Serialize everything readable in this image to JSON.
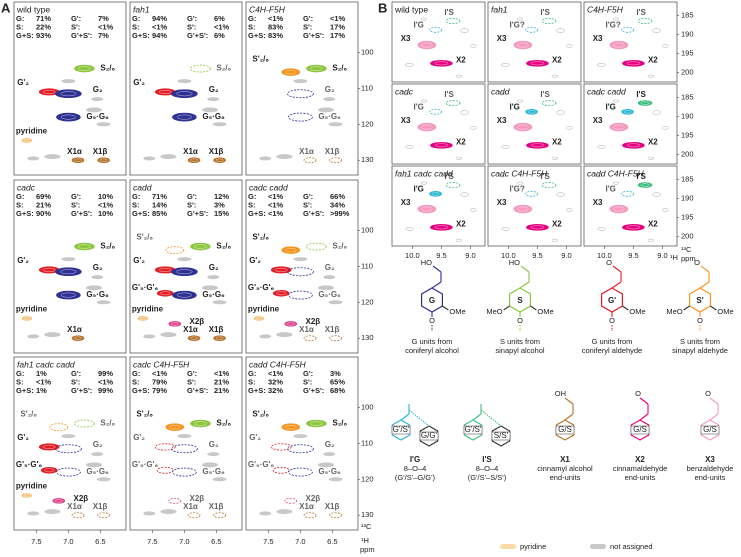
{
  "panel_a": {
    "letter": "A",
    "x_ticks": [
      "7.5",
      "7.0",
      "6.5"
    ],
    "y_ticks": [
      "100",
      "110",
      "120",
      "130"
    ],
    "x_unit": "¹H",
    "y_unit": "¹³C",
    "unit": "ppm",
    "stat_colors": [
      [
        "#2e3192",
        "#e31e24"
      ],
      [
        "#5f9e2f",
        "#f7941d"
      ],
      [
        "#1b2a5e",
        "#a0561d"
      ]
    ],
    "panels": [
      {
        "title": "wild type",
        "italic": false,
        "stats": [
          [
            "G:",
            "71%",
            "G':",
            "7%"
          ],
          [
            "S:",
            "22%",
            "S':",
            "<1%"
          ],
          [
            "G+S:",
            "93%",
            "G'+S':",
            "7%"
          ]
        ],
        "peaks": [
          {
            "label": "S₂/₆",
            "color": "#8dc63f",
            "dashed": false
          },
          {
            "label": "G'₂",
            "color": "#e31e24",
            "dashed": false
          },
          {
            "label": "G₂",
            "color": "#2e3192",
            "dashed": false
          },
          {
            "label": "G₅·G₆",
            "color": "#2e3192",
            "dashed": false
          },
          {
            "label": "pyridine",
            "color": "#f5c27a",
            "dashed": false
          },
          {
            "label": "X1α",
            "color": "#b5732b",
            "dashed": false
          },
          {
            "label": "X1β",
            "color": "#b5732b",
            "dashed": false
          }
        ]
      },
      {
        "title": "fah1",
        "italic": true,
        "stats": [
          [
            "G:",
            "94%",
            "G':",
            "6%"
          ],
          [
            "S:",
            "<1%",
            "S':",
            "<1%"
          ],
          [
            "G+S:",
            "94%",
            "G'+S':",
            "6%"
          ]
        ],
        "peaks": [
          {
            "label": "S₂/₆",
            "color": "#8dc63f",
            "dashed": true
          },
          {
            "label": "G'₂",
            "color": "#e31e24",
            "dashed": false
          },
          {
            "label": "G₂",
            "color": "#2e3192",
            "dashed": false
          },
          {
            "label": "G₅·G₆",
            "color": "#2e3192",
            "dashed": false
          },
          {
            "label": "X1α",
            "color": "#b5732b",
            "dashed": false
          },
          {
            "label": "X1β",
            "color": "#b5732b",
            "dashed": false
          }
        ]
      },
      {
        "title": "C4H-F5H",
        "italic": true,
        "stats": [
          [
            "G:",
            "<1%",
            "G':",
            "<1%"
          ],
          [
            "S:",
            "83%",
            "S':",
            "17%"
          ],
          [
            "G+S:",
            "83%",
            "G'+S':",
            "17%"
          ]
        ],
        "peaks": [
          {
            "label": "S'₂/₆",
            "color": "#f7941d",
            "dashed": false
          },
          {
            "label": "S₂/₆",
            "color": "#8dc63f",
            "dashed": false
          },
          {
            "label": "G₂",
            "color": "#2e3192",
            "dashed": true
          },
          {
            "label": "G₅·G₆",
            "color": "#2e3192",
            "dashed": true
          },
          {
            "label": "X1α",
            "color": "#b5732b",
            "dashed": true
          },
          {
            "label": "X1β",
            "color": "#b5732b",
            "dashed": true
          }
        ]
      },
      {
        "title": "cadc",
        "italic": true,
        "stats": [
          [
            "G:",
            "69%",
            "G':",
            "10%"
          ],
          [
            "S:",
            "21%",
            "S':",
            "<1%"
          ],
          [
            "G+S:",
            "90%",
            "G'+S':",
            "10%"
          ]
        ],
        "peaks": [
          {
            "label": "S₂/₆",
            "color": "#8dc63f",
            "dashed": false
          },
          {
            "label": "G'₂",
            "color": "#e31e24",
            "dashed": false
          },
          {
            "label": "G₂",
            "color": "#2e3192",
            "dashed": false
          },
          {
            "label": "G₅·G₆",
            "color": "#2e3192",
            "dashed": false
          },
          {
            "label": "pyridine",
            "color": "#f5c27a",
            "dashed": false
          },
          {
            "label": "X1α",
            "color": "#b5732b",
            "dashed": false
          }
        ]
      },
      {
        "title": "cadd",
        "italic": true,
        "stats": [
          [
            "G:",
            "71%",
            "G':",
            "12%"
          ],
          [
            "S:",
            "14%",
            "S':",
            "3%"
          ],
          [
            "G+S:",
            "85%",
            "G'+S':",
            "15%"
          ]
        ],
        "peaks": [
          {
            "label": "S'₂/₆",
            "color": "#f7941d",
            "dashed": true
          },
          {
            "label": "S₂/₆",
            "color": "#8dc63f",
            "dashed": false
          },
          {
            "label": "G'₂",
            "color": "#e31e24",
            "dashed": false
          },
          {
            "label": "G₂",
            "color": "#2e3192",
            "dashed": false
          },
          {
            "label": "G'₅·G'₆",
            "color": "#e31e24",
            "dashed": false
          },
          {
            "label": "G₅·G₆",
            "color": "#2e3192",
            "dashed": false
          },
          {
            "label": "pyridine",
            "color": "#f5c27a",
            "dashed": false
          },
          {
            "label": "X2β",
            "color": "#e0468d",
            "dashed": false
          },
          {
            "label": "X1α",
            "color": "#b5732b",
            "dashed": false
          },
          {
            "label": "X1β",
            "color": "#b5732b",
            "dashed": false
          }
        ]
      },
      {
        "title": "cadc cadd",
        "italic": true,
        "stats": [
          [
            "G:",
            "<1%",
            "G':",
            "66%"
          ],
          [
            "S:",
            "<1%",
            "S':",
            "34%"
          ],
          [
            "G+S:",
            "<1%",
            "G'+S':",
            ">99%"
          ]
        ],
        "peaks": [
          {
            "label": "S'₂/₆",
            "color": "#f7941d",
            "dashed": false
          },
          {
            "label": "S₂/₆",
            "color": "#8dc63f",
            "dashed": true
          },
          {
            "label": "G'₂",
            "color": "#e31e24",
            "dashed": false
          },
          {
            "label": "G₂",
            "color": "#2e3192",
            "dashed": true
          },
          {
            "label": "G'₅·G'₆",
            "color": "#e31e24",
            "dashed": false
          },
          {
            "label": "G₅·G₆",
            "color": "#2e3192",
            "dashed": true
          },
          {
            "label": "pyridine",
            "color": "#f5c27a",
            "dashed": false
          },
          {
            "label": "X2β",
            "color": "#e0468d",
            "dashed": false
          },
          {
            "label": "X1α",
            "color": "#b5732b",
            "dashed": true
          },
          {
            "label": "X1β",
            "color": "#b5732b",
            "dashed": true
          }
        ]
      },
      {
        "title": "fah1 cadc cadd",
        "italic": true,
        "stats": [
          [
            "G:",
            "1%",
            "G':",
            "99%"
          ],
          [
            "S:",
            "<1%",
            "S':",
            "<1%"
          ],
          [
            "G+S:",
            "1%",
            "G'+S':",
            "99%"
          ]
        ],
        "peaks": [
          {
            "label": "S₂/₆",
            "color": "#8dc63f",
            "dashed": true
          },
          {
            "label": "S'₂/₆",
            "color": "#f7941d",
            "dashed": true
          },
          {
            "label": "G'₂",
            "color": "#e31e24",
            "dashed": false
          },
          {
            "label": "G₂",
            "color": "#2e3192",
            "dashed": true
          },
          {
            "label": "G'₅·G'₆",
            "color": "#e31e24",
            "dashed": false
          },
          {
            "label": "G₅·G₆",
            "color": "#2e3192",
            "dashed": true
          },
          {
            "label": "pyridine",
            "color": "#f5c27a",
            "dashed": false
          },
          {
            "label": "X2β",
            "color": "#e0468d",
            "dashed": false
          },
          {
            "label": "X1α",
            "color": "#b5732b",
            "dashed": true
          },
          {
            "label": "X1β",
            "color": "#b5732b",
            "dashed": true
          }
        ]
      },
      {
        "title": "cadc C4H-F5H",
        "italic": true,
        "stats": [
          [
            "G:",
            "<1%",
            "G':",
            "<1%"
          ],
          [
            "S:",
            "79%",
            "S':",
            "21%"
          ],
          [
            "G+S:",
            "79%",
            "G'+S':",
            "21%"
          ]
        ],
        "peaks": [
          {
            "label": "S'₂/₆",
            "color": "#f7941d",
            "dashed": false
          },
          {
            "label": "S₂/₆",
            "color": "#8dc63f",
            "dashed": false
          },
          {
            "label": "G'₂",
            "color": "#e31e24",
            "dashed": true
          },
          {
            "label": "G₂",
            "color": "#2e3192",
            "dashed": true
          },
          {
            "label": "G'₅·G'₆",
            "color": "#e31e24",
            "dashed": true
          },
          {
            "label": "G₅·G₆",
            "color": "#2e3192",
            "dashed": true
          },
          {
            "label": "X2β",
            "color": "#e0468d",
            "dashed": true
          },
          {
            "label": "X1α",
            "color": "#b5732b",
            "dashed": true
          },
          {
            "label": "X1β",
            "color": "#b5732b",
            "dashed": true
          }
        ]
      },
      {
        "title": "cadd C4H-F5H",
        "italic": true,
        "stats": [
          [
            "G:",
            "<1%",
            "G':",
            "3%"
          ],
          [
            "S:",
            "32%",
            "S':",
            "65%"
          ],
          [
            "G+S:",
            "32%",
            "G'+S':",
            "68%"
          ]
        ],
        "peaks": [
          {
            "label": "S'₂/₆",
            "color": "#f7941d",
            "dashed": false
          },
          {
            "label": "S₂/₆",
            "color": "#8dc63f",
            "dashed": false
          },
          {
            "label": "G'₂",
            "color": "#e31e24",
            "dashed": true
          },
          {
            "label": "G₂",
            "color": "#2e3192",
            "dashed": true
          },
          {
            "label": "G'₅·G'₆",
            "color": "#e31e24",
            "dashed": true
          },
          {
            "label": "G₅·G₆",
            "color": "#2e3192",
            "dashed": true
          },
          {
            "label": "X2β",
            "color": "#e0468d",
            "dashed": true
          },
          {
            "label": "X1α",
            "color": "#b5732b",
            "dashed": true
          },
          {
            "label": "X1β",
            "color": "#b5732b",
            "dashed": true
          }
        ]
      }
    ]
  },
  "panel_b": {
    "letter": "B",
    "x_ticks": [
      "10.0",
      "9.5",
      "9.0"
    ],
    "y_ticks": [
      "185",
      "190",
      "195",
      "200"
    ],
    "x_unit": "¹H",
    "y_unit": "¹³C",
    "unit": "ppm",
    "panels": [
      {
        "title": "wild type",
        "italic": false,
        "peaks": [
          {
            "label": "I'S",
            "color": "#3fbf7f",
            "dashed": true
          },
          {
            "label": "I'G",
            "color": "#29b6d6",
            "dashed": true
          },
          {
            "label": "X3",
            "color": "#f49ac1",
            "dashed": false
          },
          {
            "label": "X2",
            "color": "#e6007e",
            "dashed": false
          }
        ]
      },
      {
        "title": "fah1",
        "italic": true,
        "peaks": [
          {
            "label": "I'S",
            "color": "#3fbf7f",
            "dashed": true
          },
          {
            "label": "I'G?",
            "color": "#29b6d6",
            "dashed": true
          },
          {
            "label": "X3",
            "color": "#f49ac1",
            "dashed": false
          },
          {
            "label": "X2",
            "color": "#e6007e",
            "dashed": false
          }
        ]
      },
      {
        "title": "C4H-F5H",
        "italic": true,
        "peaks": [
          {
            "label": "I'S",
            "color": "#3fbf7f",
            "dashed": true
          },
          {
            "label": "I'G?",
            "color": "#29b6d6",
            "dashed": true
          },
          {
            "label": "X3",
            "color": "#f49ac1",
            "dashed": false
          },
          {
            "label": "X2",
            "color": "#e6007e",
            "dashed": false
          }
        ]
      },
      {
        "title": "cadc",
        "italic": true,
        "peaks": [
          {
            "label": "I'S",
            "color": "#3fbf7f",
            "dashed": true
          },
          {
            "label": "I'G",
            "color": "#29b6d6",
            "dashed": true
          },
          {
            "label": "X3",
            "color": "#f49ac1",
            "dashed": false
          },
          {
            "label": "X2",
            "color": "#e6007e",
            "dashed": false
          }
        ]
      },
      {
        "title": "cadd",
        "italic": true,
        "peaks": [
          {
            "label": "I'S",
            "color": "#3fbf7f",
            "dashed": true
          },
          {
            "label": "I'G",
            "color": "#29b6d6",
            "dashed": false
          },
          {
            "label": "X3",
            "color": "#f49ac1",
            "dashed": false
          },
          {
            "label": "X2",
            "color": "#e6007e",
            "dashed": false
          }
        ]
      },
      {
        "title": "cadc cadd",
        "italic": true,
        "peaks": [
          {
            "label": "I'S",
            "color": "#3fbf7f",
            "dashed": false
          },
          {
            "label": "I'G",
            "color": "#29b6d6",
            "dashed": false
          },
          {
            "label": "X3",
            "color": "#f49ac1",
            "dashed": false
          },
          {
            "label": "X2",
            "color": "#e6007e",
            "dashed": false
          }
        ]
      },
      {
        "title": "fah1 cadc cadd",
        "italic": true,
        "peaks": [
          {
            "label": "I'S",
            "color": "#3fbf7f",
            "dashed": true
          },
          {
            "label": "I'G",
            "color": "#29b6d6",
            "dashed": false
          },
          {
            "label": "X3",
            "color": "#f49ac1",
            "dashed": false
          },
          {
            "label": "X2",
            "color": "#e6007e",
            "dashed": false
          }
        ]
      },
      {
        "title": "cadc C4H-F5H",
        "italic": true,
        "peaks": [
          {
            "label": "I'S",
            "color": "#3fbf7f",
            "dashed": true
          },
          {
            "label": "I'G?",
            "color": "#29b6d6",
            "dashed": true
          },
          {
            "label": "X3",
            "color": "#f49ac1",
            "dashed": false
          },
          {
            "label": "X2",
            "color": "#e6007e",
            "dashed": false
          }
        ]
      },
      {
        "title": "cadd C4H-F5H",
        "italic": true,
        "peaks": [
          {
            "label": "I'S",
            "color": "#3fbf7f",
            "dashed": false
          },
          {
            "label": "I'G",
            "color": "#29b6d6",
            "dashed": true
          },
          {
            "label": "X3",
            "color": "#f49ac1",
            "dashed": false
          },
          {
            "label": "X2",
            "color": "#e6007e",
            "dashed": false
          }
        ]
      }
    ]
  },
  "structures": [
    {
      "letter": "G",
      "color": "#2e3192",
      "top": "HO",
      "bottom": "O",
      "subs": [
        "OMe"
      ],
      "caption": [
        "G units from",
        "coniferyl alcohol"
      ]
    },
    {
      "letter": "S",
      "color": "#8dc63f",
      "top": "HO",
      "bottom": "O",
      "subs": [
        "MeO",
        "OMe"
      ],
      "caption": [
        "S units from",
        "sinapyl alcohol"
      ]
    },
    {
      "letter": "G'",
      "color": "#e31e24",
      "top": "O",
      "bottom": "O",
      "subs": [
        "OMe"
      ],
      "caption": [
        "G units from",
        "coniferyl aldehyde"
      ]
    },
    {
      "letter": "S'",
      "color": "#f7941d",
      "top": "O",
      "bottom": "O",
      "subs": [
        "MeO",
        "OMe"
      ],
      "caption": [
        "S units from",
        "sinapyl aldehyde"
      ]
    }
  ],
  "end_units": [
    {
      "title": "I'G",
      "color": "#29b6d6",
      "rings": [
        "G'/S'",
        "G/G'"
      ],
      "caption": [
        "8–O–4",
        "(G'/S'–G/G')"
      ]
    },
    {
      "title": "I'S",
      "color": "#3fbf7f",
      "rings": [
        "G'/S'",
        "S/S'"
      ],
      "caption": [
        "8–O–4",
        "(G'/S'–S/S')"
      ]
    },
    {
      "title": "X1",
      "color": "#b5732b",
      "top": "OH",
      "rings": [
        "G/S"
      ],
      "caption": [
        "cinnamyl alcohol",
        "end-units"
      ]
    },
    {
      "title": "X2",
      "color": "#e6007e",
      "top": "O",
      "rings": [
        "G/S"
      ],
      "caption": [
        "cinnamaldehyde",
        "end-units"
      ]
    },
    {
      "title": "X3",
      "color": "#f49ac1",
      "top": "O",
      "rings": [
        "G/S"
      ],
      "caption": [
        "benzaldehyde",
        "end-units"
      ]
    }
  ],
  "legend": [
    {
      "label": "pyridine",
      "color": "#fbd9a8"
    },
    {
      "label": "not assigned",
      "color": "#c8c8c8"
    }
  ]
}
